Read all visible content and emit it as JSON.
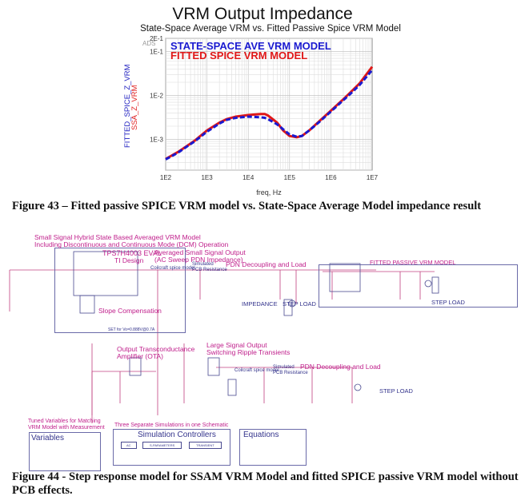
{
  "figure43": {
    "caption": "Figure 43 – Fitted passive SPICE VRM model vs. State-Space Average Model impedance result"
  },
  "chart_data": {
    "type": "line",
    "title": "VRM Output Impedance",
    "subtitle": "State-Space Average VRM vs. Fitted Passive Spice VRM Model",
    "xlabel": "freq, Hz",
    "ylabel": [
      "FITTED_SPICE_Z_VRM",
      "SSA_Z_VRM"
    ],
    "xscale": "log",
    "yscale": "log",
    "xlim": [
      100,
      10000000
    ],
    "ylim": [
      0.0002,
      0.2
    ],
    "grid": true,
    "watermark": "ADS",
    "xticks": [
      "1E2",
      "1E3",
      "1E4",
      "1E5",
      "1E6",
      "1E7"
    ],
    "yticks": [
      {
        "v": 0.2,
        "label": "2E-1"
      },
      {
        "v": 0.1,
        "label": "1E-1"
      },
      {
        "v": 0.01,
        "label": "1E-2"
      },
      {
        "v": 0.001,
        "label": "1E-3"
      }
    ],
    "legend_placement": "top-left",
    "x": [
      100,
      200,
      300,
      500,
      1000,
      2000,
      3000,
      5000,
      10000,
      20000,
      25000,
      30000,
      50000,
      70000,
      100000,
      150000,
      200000,
      300000,
      500000,
      1000000,
      2000000,
      3000000,
      5000000,
      10000000
    ],
    "series": [
      {
        "name": "STATE-SPACE AVE VRM MODEL",
        "color": "#1a1ad0",
        "style": "dashed",
        "values": [
          0.00035,
          0.0005,
          0.00065,
          0.0009,
          0.0015,
          0.0023,
          0.0028,
          0.0031,
          0.0033,
          0.0032,
          0.0031,
          0.0029,
          0.0022,
          0.0017,
          0.0013,
          0.00115,
          0.0012,
          0.0016,
          0.0024,
          0.0043,
          0.0078,
          0.011,
          0.0175,
          0.038
        ]
      },
      {
        "name": "FITTED SPICE VRM MODEL",
        "color": "#e01818",
        "style": "solid",
        "values": [
          0.00036,
          0.00052,
          0.00067,
          0.00093,
          0.0016,
          0.0024,
          0.0029,
          0.0033,
          0.0036,
          0.0038,
          0.0038,
          0.0035,
          0.0024,
          0.0016,
          0.0012,
          0.00112,
          0.0012,
          0.0016,
          0.0025,
          0.0045,
          0.0082,
          0.0118,
          0.019,
          0.045
        ]
      }
    ]
  },
  "schematic": {
    "labels": {
      "hybrid": "Small Signal Hybrid State Based Averaged VRM Model",
      "hybrid2": "Including Discontinuous and Continuous Mode (DCM) Operation",
      "tps": "TPS7H4003 EVAL",
      "ti": "TI Design",
      "avg": "Averaged Small Signal Output",
      "avg2": "(AC Sweep PDN Impedance)",
      "coilcraft": "Coilcraft spice model",
      "pcb": "Simulated",
      "pcb2": "PCB Resistance",
      "pdn": "PDN Decoupling and Load",
      "impedance": "IMPEDANCE",
      "step": "STEP LOAD",
      "slope": "Slope Compensation",
      "set": "SET for Vo=0.888V@0.7A",
      "fitted": "FITTED PASSIVE VRM MODEL",
      "step2": "STEP LOAD",
      "ota": "Output Transconductance",
      "ota2": "Amplifier (OTA)",
      "large": "Large Signal Output",
      "large2": "Switching Ripple Transients",
      "coilcraft2": "Coilcraft spice model",
      "pcb3": "Simulated",
      "pcb4": "PCB Resistance",
      "pdn2": "PDN Decoupling and Load",
      "step3": "STEP LOAD",
      "tuned": "Tuned Variables for Matching",
      "tuned2": "VRM Model with Measurement",
      "three": "Three Separate Simulations in one Schematic"
    },
    "variables_title": "Variables",
    "sim_title": "Simulation Controllers",
    "sim_buttons": [
      "AC",
      "S-PARAMETERS",
      "TRANSIENT"
    ],
    "equations_title": "Equations"
  },
  "figure44": {
    "caption": "Figure 44 - Step response model for SSAM VRM Model and fitted SPICE passive VRM model without",
    "caption2": "PCB effects."
  },
  "colors": {
    "label": "#c0208c",
    "box": "#6a6aa8",
    "wire": "#c04080"
  }
}
